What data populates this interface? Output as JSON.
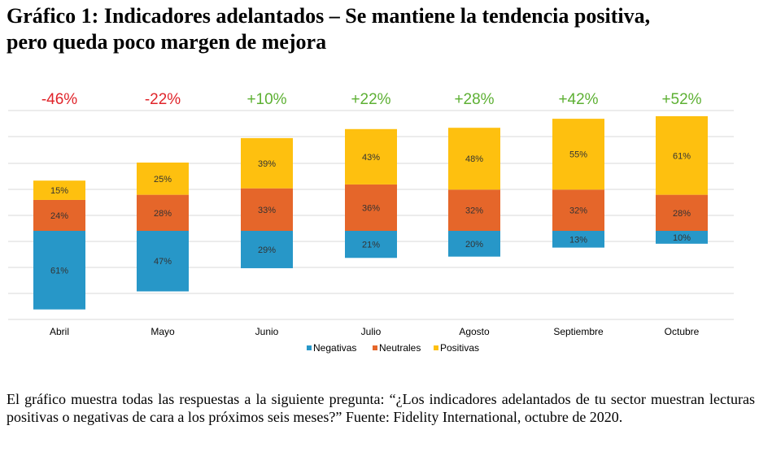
{
  "title_line1": "Gráfico 1: Indicadores adelantados – Se mantiene la tendencia positiva,",
  "title_line2": "pero queda poco margen de mejora",
  "caption": "El gráfico muestra todas las respuestas a la siguiente pregunta: “¿Los indicadores adelantados de tu sector muestran lecturas positivas o negativas de cara a los próximos seis meses?” Fuente: Fidelity International, octubre de 2020.",
  "colors": {
    "negativas": "#2797C8",
    "neutrales": "#E5662A",
    "positivas": "#FEC00F",
    "net_negative": "#E0242A",
    "net_positive": "#5DB033",
    "grid": "#D9D9D9",
    "label_text": "#333333"
  },
  "chart_data": {
    "type": "bar",
    "stacked": true,
    "baseline_between": "Negativas/Neutrales",
    "categories": [
      "Abril",
      "Mayo",
      "Junio",
      "Julio",
      "Agosto",
      "Septiembre",
      "Octubre"
    ],
    "series": [
      {
        "name": "Negativas",
        "values": [
          61,
          47,
          29,
          21,
          20,
          13,
          10
        ],
        "labels": [
          "61%",
          "47%",
          "29%",
          "21%",
          "20%",
          "13%",
          "10%"
        ]
      },
      {
        "name": "Neutrales",
        "values": [
          24,
          28,
          33,
          36,
          32,
          32,
          28
        ],
        "labels": [
          "24%",
          "28%",
          "33%",
          "36%",
          "32%",
          "32%",
          "28%"
        ]
      },
      {
        "name": "Positivas",
        "values": [
          15,
          25,
          39,
          43,
          48,
          55,
          61
        ],
        "labels": [
          "15%",
          "25%",
          "39%",
          "43%",
          "48%",
          "55%",
          "61%"
        ]
      }
    ],
    "net_balance": [
      -46,
      -22,
      10,
      22,
      28,
      42,
      52
    ],
    "net_labels": [
      "-46%",
      "-22%",
      "+10%",
      "+22%",
      "+28%",
      "+42%",
      "+52%"
    ],
    "legend": [
      "Negativas",
      "Neutrales",
      "Positivas"
    ],
    "legend_position": "bottom",
    "grid": true
  }
}
